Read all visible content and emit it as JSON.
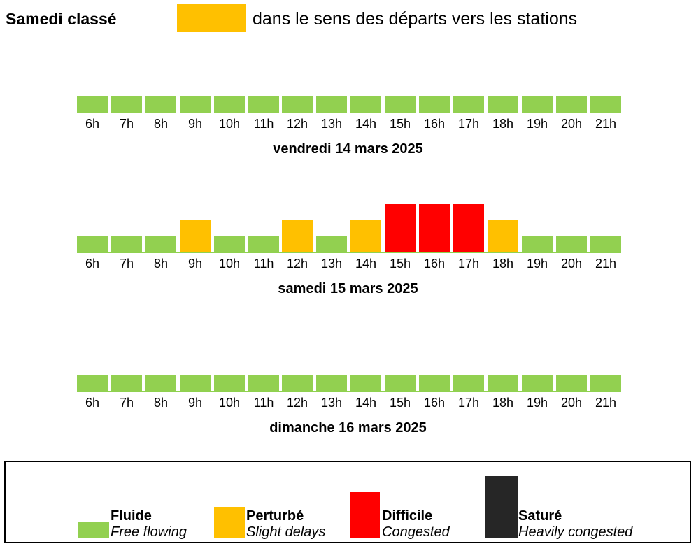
{
  "header": {
    "title": "Samedi classé",
    "direction": "dans le sens des départs vers les stations",
    "swatch_color": "#FFC000"
  },
  "levels": {
    "fluide": {
      "label": "Fluide",
      "sublabel": "Free flowing",
      "color": "#92D050",
      "value": 1
    },
    "perturbe": {
      "label": "Perturbé",
      "sublabel": "Slight delays",
      "color": "#FFC000",
      "value": 2
    },
    "difficile": {
      "label": "Difficile",
      "sublabel": "Congested",
      "color": "#FF0000",
      "value": 3
    },
    "sature": {
      "label": "Saturé",
      "sublabel": "Heavily congested",
      "color": "#262626",
      "value": 4
    }
  },
  "chart_data": [
    {
      "type": "bar",
      "title": "vendredi 14 mars 2025",
      "categories": [
        "6h",
        "7h",
        "8h",
        "9h",
        "10h",
        "11h",
        "12h",
        "13h",
        "14h",
        "15h",
        "16h",
        "17h",
        "18h",
        "19h",
        "20h",
        "21h"
      ],
      "levels": [
        "fluide",
        "fluide",
        "fluide",
        "fluide",
        "fluide",
        "fluide",
        "fluide",
        "fluide",
        "fluide",
        "fluide",
        "fluide",
        "fluide",
        "fluide",
        "fluide",
        "fluide",
        "fluide"
      ],
      "values": [
        1,
        1,
        1,
        1,
        1,
        1,
        1,
        1,
        1,
        1,
        1,
        1,
        1,
        1,
        1,
        1
      ]
    },
    {
      "type": "bar",
      "title": "samedi 15 mars 2025",
      "categories": [
        "6h",
        "7h",
        "8h",
        "9h",
        "10h",
        "11h",
        "12h",
        "13h",
        "14h",
        "15h",
        "16h",
        "17h",
        "18h",
        "19h",
        "20h",
        "21h"
      ],
      "levels": [
        "fluide",
        "fluide",
        "fluide",
        "perturbe",
        "fluide",
        "fluide",
        "perturbe",
        "fluide",
        "perturbe",
        "difficile",
        "difficile",
        "difficile",
        "perturbe",
        "fluide",
        "fluide",
        "fluide"
      ],
      "values": [
        1,
        1,
        1,
        2,
        1,
        1,
        2,
        1,
        2,
        3,
        3,
        3,
        2,
        1,
        1,
        1
      ]
    },
    {
      "type": "bar",
      "title": "dimanche 16 mars 2025",
      "categories": [
        "6h",
        "7h",
        "8h",
        "9h",
        "10h",
        "11h",
        "12h",
        "13h",
        "14h",
        "15h",
        "16h",
        "17h",
        "18h",
        "19h",
        "20h",
        "21h"
      ],
      "levels": [
        "fluide",
        "fluide",
        "fluide",
        "fluide",
        "fluide",
        "fluide",
        "fluide",
        "fluide",
        "fluide",
        "fluide",
        "fluide",
        "fluide",
        "fluide",
        "fluide",
        "fluide",
        "fluide"
      ],
      "values": [
        1,
        1,
        1,
        1,
        1,
        1,
        1,
        1,
        1,
        1,
        1,
        1,
        1,
        1,
        1,
        1
      ]
    }
  ]
}
